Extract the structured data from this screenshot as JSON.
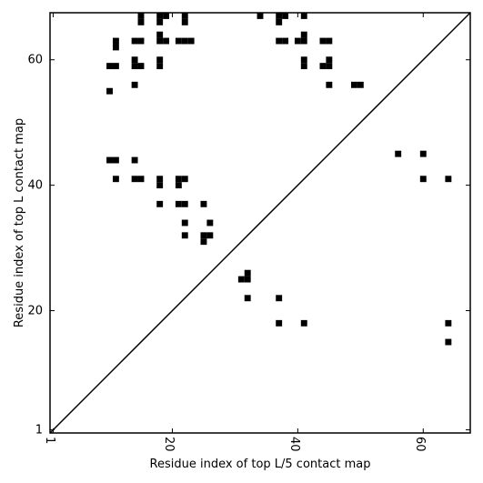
{
  "chart_data": {
    "type": "heatmap",
    "title": "",
    "xlabel": "Residue index of top L/5 contact map",
    "ylabel": "Residue index of top L contact map",
    "xlim": [
      0.5,
      67.5
    ],
    "ylim": [
      0.5,
      67.5
    ],
    "x_ticks": [
      1,
      20,
      40,
      60
    ],
    "y_ticks": [
      1,
      20,
      40,
      60
    ],
    "diagonal": true,
    "grid": false,
    "cell_color": "#000000",
    "upper_points": [
      [
        10,
        59
      ],
      [
        11,
        59
      ],
      [
        10,
        55
      ],
      [
        10,
        44
      ],
      [
        11,
        44
      ],
      [
        11,
        41
      ],
      [
        11,
        62
      ],
      [
        11,
        63
      ],
      [
        14,
        63
      ],
      [
        15,
        63
      ],
      [
        14,
        60
      ],
      [
        14,
        59
      ],
      [
        15,
        59
      ],
      [
        14,
        56
      ],
      [
        14,
        44
      ],
      [
        14,
        41
      ],
      [
        15,
        41
      ],
      [
        15,
        66
      ],
      [
        15,
        67
      ],
      [
        18,
        66
      ],
      [
        18,
        67
      ],
      [
        19,
        67
      ],
      [
        18,
        64
      ],
      [
        18,
        63
      ],
      [
        19,
        63
      ],
      [
        18,
        60
      ],
      [
        18,
        59
      ],
      [
        18,
        41
      ],
      [
        18,
        40
      ],
      [
        18,
        37
      ],
      [
        21,
        63
      ],
      [
        22,
        63
      ],
      [
        23,
        63
      ],
      [
        22,
        66
      ],
      [
        22,
        67
      ],
      [
        21,
        41
      ],
      [
        22,
        41
      ],
      [
        21,
        40
      ],
      [
        21,
        37
      ],
      [
        22,
        37
      ],
      [
        22,
        34
      ],
      [
        22,
        32
      ],
      [
        25,
        37
      ],
      [
        25,
        32
      ],
      [
        26,
        32
      ],
      [
        25,
        31
      ],
      [
        26,
        34
      ],
      [
        34,
        67
      ],
      [
        37,
        66
      ],
      [
        37,
        67
      ],
      [
        38,
        67
      ],
      [
        37,
        63
      ],
      [
        38,
        63
      ],
      [
        40,
        63
      ],
      [
        41,
        63
      ],
      [
        41,
        64
      ],
      [
        41,
        67
      ],
      [
        41,
        60
      ],
      [
        41,
        59
      ],
      [
        44,
        63
      ],
      [
        45,
        63
      ],
      [
        44,
        59
      ],
      [
        45,
        59
      ],
      [
        45,
        60
      ],
      [
        45,
        56
      ],
      [
        49,
        56
      ],
      [
        50,
        56
      ],
      [
        56,
        45
      ],
      [
        60,
        45
      ],
      [
        60,
        41
      ],
      [
        64,
        41
      ]
    ],
    "lower_points": [
      [
        31,
        25
      ],
      [
        32,
        25
      ],
      [
        32,
        26
      ],
      [
        32,
        22
      ],
      [
        37,
        22
      ],
      [
        37,
        18
      ],
      [
        41,
        18
      ],
      [
        64,
        18
      ],
      [
        64,
        15
      ]
    ]
  }
}
